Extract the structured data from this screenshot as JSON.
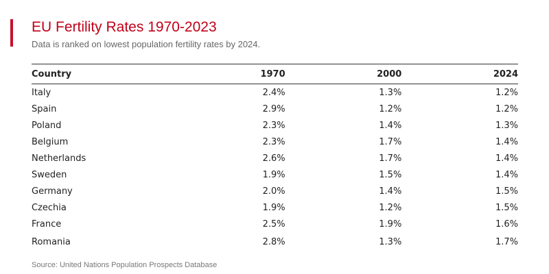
{
  "header": {
    "title": "EU Fertility Rates 1970-2023",
    "subtitle": "Data is ranked on lowest population fertility rates by 2024.",
    "accent_color": "#c8102e"
  },
  "table": {
    "columns": [
      "Country",
      "1970",
      "2000",
      "2024"
    ],
    "rows": [
      [
        "Italy",
        "2.4%",
        "1.3%",
        "1.2%"
      ],
      [
        "Spain",
        "2.9%",
        "1.2%",
        "1.2%"
      ],
      [
        "Poland",
        "2.3%",
        "1.4%",
        "1.3%"
      ],
      [
        "Belgium",
        "2.3%",
        "1.7%",
        "1.4%"
      ],
      [
        "Netherlands",
        "2.6%",
        "1.7%",
        "1.4%"
      ],
      [
        "Sweden",
        "1.9%",
        "1.5%",
        "1.4%"
      ],
      [
        "Germany",
        "2.0%",
        "1.4%",
        "1.5%"
      ],
      [
        "Czechia",
        "1.9%",
        "1.2%",
        "1.5%"
      ],
      [
        "France",
        "2.5%",
        "1.9%",
        "1.6%"
      ],
      [
        "Romania",
        "2.8%",
        "1.3%",
        "1.7%"
      ]
    ]
  },
  "footer": {
    "source": "Source: United Nations Population Prospects Database"
  },
  "chart_data": {
    "type": "table",
    "title": "EU Fertility Rates 1970-2023",
    "subtitle": "Data is ranked on lowest population fertility rates by 2024.",
    "columns": [
      "Country",
      "1970",
      "2000",
      "2024"
    ],
    "categories": [
      "Italy",
      "Spain",
      "Poland",
      "Belgium",
      "Netherlands",
      "Sweden",
      "Germany",
      "Czechia",
      "France",
      "Romania"
    ],
    "series": [
      {
        "name": "1970",
        "values": [
          2.4,
          2.9,
          2.3,
          2.3,
          2.6,
          1.9,
          2.0,
          1.9,
          2.5,
          2.8
        ]
      },
      {
        "name": "2000",
        "values": [
          1.3,
          1.2,
          1.4,
          1.7,
          1.7,
          1.5,
          1.4,
          1.2,
          1.9,
          1.3
        ]
      },
      {
        "name": "2024",
        "values": [
          1.2,
          1.2,
          1.3,
          1.4,
          1.4,
          1.4,
          1.5,
          1.5,
          1.6,
          1.7
        ]
      }
    ],
    "source": "Source: United Nations Population Prospects Database"
  }
}
